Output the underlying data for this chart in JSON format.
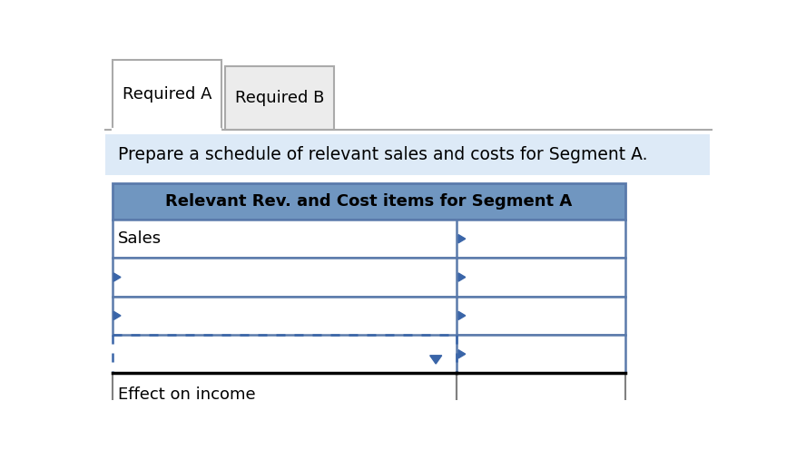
{
  "tab1_label": "Required A",
  "tab2_label": "Required B",
  "instruction_text": "Prepare a schedule of relevant sales and costs for Segment A.",
  "table_header": "Relevant Rev. and Cost items for Segment A",
  "row1_label": "Sales",
  "row_effect_label": "Effect on income",
  "tab_bg": "#ececec",
  "tab_active_bg": "#ffffff",
  "tab_border": "#aaaaaa",
  "instruction_bg": "#ddeaf7",
  "header_bg": "#7096c0",
  "header_text_color": "#000000",
  "table_border_outer": "#5a7aab",
  "table_border_inner": "#5a7aab",
  "table_bg": "#ffffff",
  "row_arrow_color": "#3a65a8",
  "dotted_border_color": "#3a65a8",
  "black_line_color": "#000000",
  "gray_line_color": "#808080",
  "figure_bg": "#ffffff"
}
